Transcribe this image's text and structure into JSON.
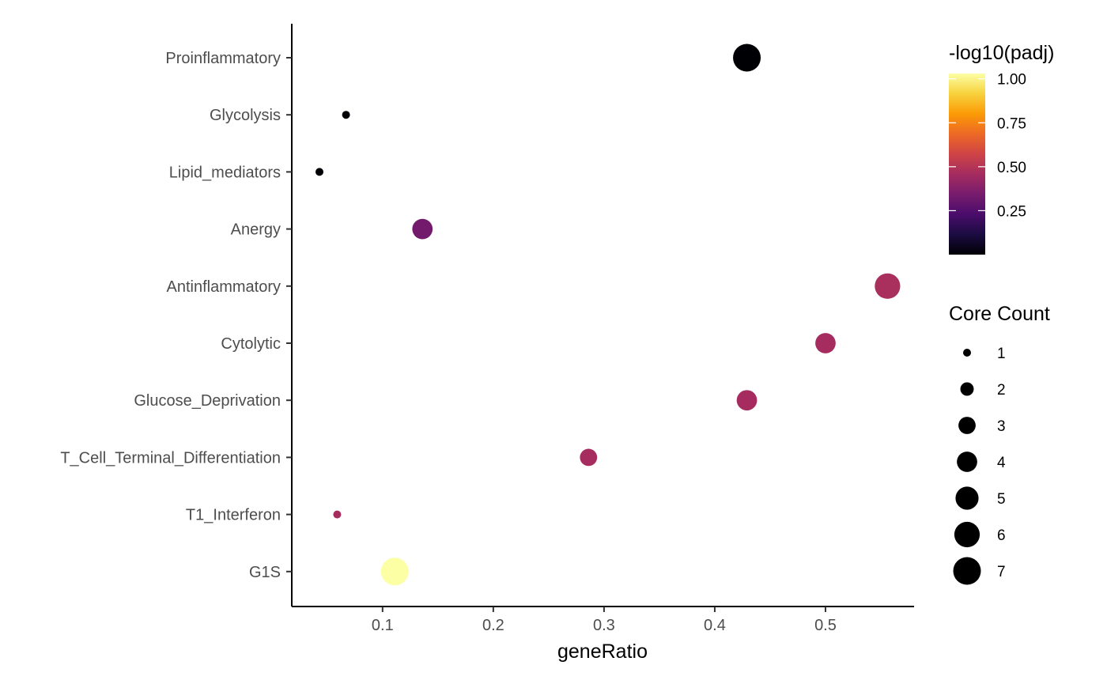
{
  "chart_data": {
    "type": "scatter",
    "title": "",
    "xlabel": "geneRatio",
    "ylabel": "",
    "xlim": [
      0.018,
      0.58
    ],
    "x_ticks": [
      "0.1",
      "0.2",
      "0.3",
      "0.4",
      "0.5"
    ],
    "x_tick_values": [
      0.1,
      0.2,
      0.3,
      0.4,
      0.5
    ],
    "categories": [
      "Proinflammatory",
      "Glycolysis",
      "Lipid_mediators",
      "Anergy",
      "Antinflammatory",
      "Cytolytic",
      "Glucose_Deprivation",
      "T_Cell_Terminal_Differentiation",
      "T1_Interferon",
      "G1S"
    ],
    "points": [
      {
        "category": "Proinflammatory",
        "geneRatio": 0.429,
        "core_count": 7,
        "neg_log10_padj": 0.0
      },
      {
        "category": "Glycolysis",
        "geneRatio": 0.067,
        "core_count": 1,
        "neg_log10_padj": 0.0
      },
      {
        "category": "Lipid_mediators",
        "geneRatio": 0.043,
        "core_count": 1,
        "neg_log10_padj": 0.0
      },
      {
        "category": "Anergy",
        "geneRatio": 0.136,
        "core_count": 4,
        "neg_log10_padj": 0.33
      },
      {
        "category": "Antinflammatory",
        "geneRatio": 0.556,
        "core_count": 6,
        "neg_log10_padj": 0.47
      },
      {
        "category": "Cytolytic",
        "geneRatio": 0.5,
        "core_count": 4,
        "neg_log10_padj": 0.46
      },
      {
        "category": "Glucose_Deprivation",
        "geneRatio": 0.429,
        "core_count": 4,
        "neg_log10_padj": 0.46
      },
      {
        "category": "T_Cell_Terminal_Differentiation",
        "geneRatio": 0.286,
        "core_count": 3,
        "neg_log10_padj": 0.46
      },
      {
        "category": "T1_Interferon",
        "geneRatio": 0.059,
        "core_count": 1,
        "neg_log10_padj": 0.46
      },
      {
        "category": "G1S",
        "geneRatio": 0.111,
        "core_count": 7,
        "neg_log10_padj": 1.03
      }
    ],
    "color_legend": {
      "title": "-log10(padj)",
      "range": [
        0.0,
        1.03
      ],
      "ticks": [
        0.25,
        0.5,
        0.75,
        1.0
      ],
      "tick_labels": [
        "0.25",
        "0.50",
        "0.75",
        "1.00"
      ],
      "colormap": "inferno",
      "colors": [
        "#000004",
        "#1b0c41",
        "#4a0c6b",
        "#781c6d",
        "#a52c60",
        "#cf4446",
        "#ed6925",
        "#fb9b06",
        "#f7d13d",
        "#fcffa4"
      ]
    },
    "size_legend": {
      "title": "Core Count",
      "values": [
        1,
        2,
        3,
        4,
        5,
        6,
        7
      ],
      "labels": [
        "1",
        "2",
        "3",
        "4",
        "5",
        "6",
        "7"
      ],
      "size_range": [
        1,
        7
      ]
    },
    "grid": false,
    "legend_position": "right"
  }
}
